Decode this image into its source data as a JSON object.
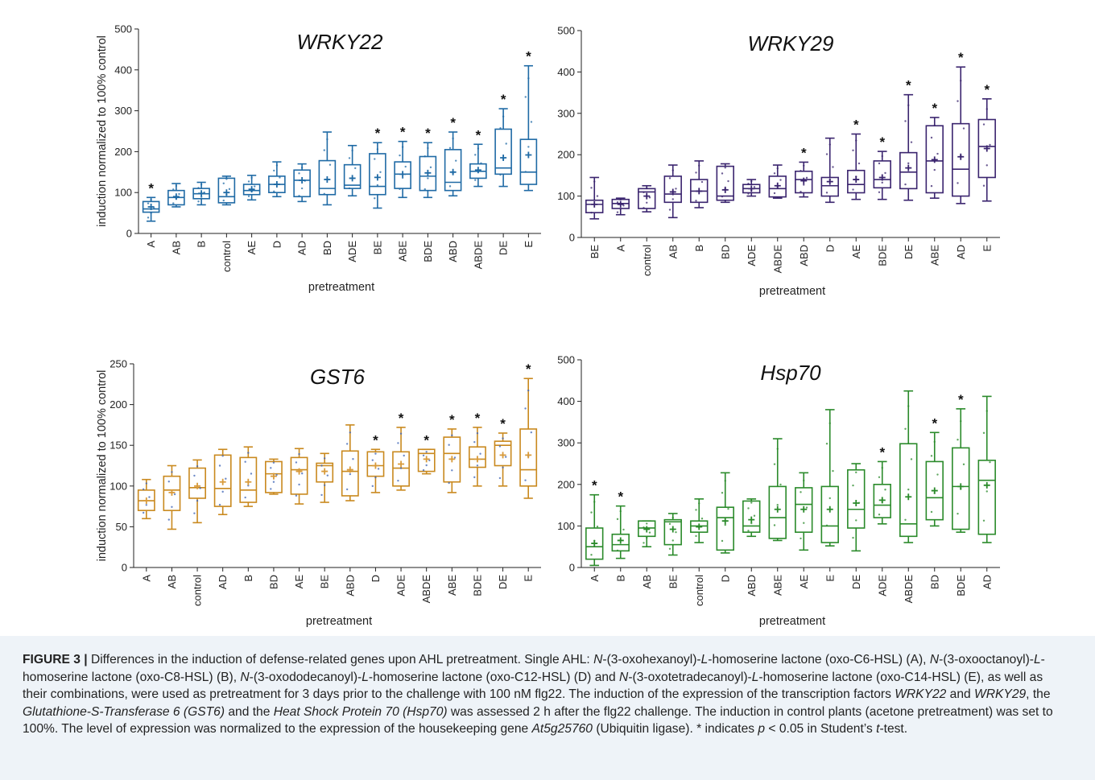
{
  "figure": {
    "y_label": "induction normalized to 100% control",
    "x_label": "pretreatment"
  },
  "chart_data": [
    {
      "type": "box",
      "title": "WRKY22",
      "color": "#1f6aa5",
      "ylim": [
        0,
        500
      ],
      "yticks": [
        0,
        100,
        200,
        300,
        400,
        500
      ],
      "ylabel": "induction normalized to 100% control",
      "xlabel": "pretreatment",
      "categories": [
        "A",
        "AB",
        "B",
        "control",
        "AE",
        "D",
        "AD",
        "BD",
        "ADE",
        "BE",
        "ABE",
        "BDE",
        "ABD",
        "ABDE",
        "DE",
        "E"
      ],
      "boxes": [
        {
          "min": 30,
          "q1": 52,
          "median": 60,
          "q3": 78,
          "max": 88,
          "mean": 65,
          "sig": true
        },
        {
          "min": 65,
          "q1": 70,
          "median": 88,
          "q3": 105,
          "max": 122,
          "mean": 90,
          "sig": false
        },
        {
          "min": 70,
          "q1": 85,
          "median": 97,
          "q3": 110,
          "max": 125,
          "mean": 98,
          "sig": false
        },
        {
          "min": 70,
          "q1": 75,
          "median": 90,
          "q3": 135,
          "max": 140,
          "mean": 100,
          "sig": false
        },
        {
          "min": 82,
          "q1": 95,
          "median": 105,
          "q3": 120,
          "max": 142,
          "mean": 108,
          "sig": false
        },
        {
          "min": 90,
          "q1": 100,
          "median": 120,
          "q3": 140,
          "max": 175,
          "mean": 120,
          "sig": false
        },
        {
          "min": 78,
          "q1": 90,
          "median": 130,
          "q3": 155,
          "max": 170,
          "mean": 130,
          "sig": false
        },
        {
          "min": 70,
          "q1": 95,
          "median": 110,
          "q3": 178,
          "max": 248,
          "mean": 132,
          "sig": false
        },
        {
          "min": 92,
          "q1": 110,
          "median": 118,
          "q3": 168,
          "max": 215,
          "mean": 135,
          "sig": false
        },
        {
          "min": 62,
          "q1": 95,
          "median": 115,
          "q3": 195,
          "max": 222,
          "mean": 137,
          "sig": true
        },
        {
          "min": 88,
          "q1": 110,
          "median": 145,
          "q3": 175,
          "max": 225,
          "mean": 145,
          "sig": true
        },
        {
          "min": 88,
          "q1": 105,
          "median": 140,
          "q3": 188,
          "max": 222,
          "mean": 148,
          "sig": true
        },
        {
          "min": 92,
          "q1": 105,
          "median": 125,
          "q3": 205,
          "max": 248,
          "mean": 150,
          "sig": true
        },
        {
          "min": 115,
          "q1": 135,
          "median": 152,
          "q3": 170,
          "max": 218,
          "mean": 155,
          "sig": true
        },
        {
          "min": 115,
          "q1": 145,
          "median": 160,
          "q3": 255,
          "max": 305,
          "mean": 185,
          "sig": true
        },
        {
          "min": 105,
          "q1": 120,
          "median": 150,
          "q3": 230,
          "max": 410,
          "mean": 192,
          "sig": true
        }
      ]
    },
    {
      "type": "box",
      "title": "WRKY29",
      "color": "#3a246e",
      "ylim": [
        0,
        500
      ],
      "yticks": [
        0,
        100,
        200,
        300,
        400,
        500
      ],
      "ylabel": "",
      "xlabel": "pretreatment",
      "categories": [
        "BE",
        "A",
        "control",
        "AB",
        "B",
        "BD",
        "ADE",
        "ABDE",
        "ABD",
        "D",
        "AE",
        "BDE",
        "DE",
        "ABE",
        "AD",
        "E"
      ],
      "boxes": [
        {
          "min": 45,
          "q1": 60,
          "median": 80,
          "q3": 90,
          "max": 145,
          "mean": 80,
          "sig": false
        },
        {
          "min": 55,
          "q1": 70,
          "median": 82,
          "q3": 92,
          "max": 95,
          "mean": 80,
          "sig": false
        },
        {
          "min": 62,
          "q1": 70,
          "median": 110,
          "q3": 118,
          "max": 125,
          "mean": 100,
          "sig": false
        },
        {
          "min": 48,
          "q1": 85,
          "median": 105,
          "q3": 148,
          "max": 175,
          "mean": 110,
          "sig": false
        },
        {
          "min": 72,
          "q1": 85,
          "median": 112,
          "q3": 140,
          "max": 185,
          "mean": 112,
          "sig": false
        },
        {
          "min": 85,
          "q1": 90,
          "median": 100,
          "q3": 172,
          "max": 178,
          "mean": 115,
          "sig": false
        },
        {
          "min": 100,
          "q1": 108,
          "median": 118,
          "q3": 128,
          "max": 140,
          "mean": 118,
          "sig": false
        },
        {
          "min": 95,
          "q1": 98,
          "median": 118,
          "q3": 148,
          "max": 175,
          "mean": 125,
          "sig": false
        },
        {
          "min": 98,
          "q1": 108,
          "median": 140,
          "q3": 160,
          "max": 182,
          "mean": 137,
          "sig": true
        },
        {
          "min": 85,
          "q1": 100,
          "median": 125,
          "q3": 145,
          "max": 240,
          "mean": 135,
          "sig": false
        },
        {
          "min": 92,
          "q1": 108,
          "median": 128,
          "q3": 162,
          "max": 250,
          "mean": 140,
          "sig": true
        },
        {
          "min": 92,
          "q1": 120,
          "median": 140,
          "q3": 185,
          "max": 208,
          "mean": 145,
          "sig": true
        },
        {
          "min": 90,
          "q1": 118,
          "median": 158,
          "q3": 205,
          "max": 345,
          "mean": 168,
          "sig": true
        },
        {
          "min": 95,
          "q1": 108,
          "median": 185,
          "q3": 270,
          "max": 290,
          "mean": 188,
          "sig": true
        },
        {
          "min": 82,
          "q1": 100,
          "median": 165,
          "q3": 275,
          "max": 412,
          "mean": 195,
          "sig": true
        },
        {
          "min": 88,
          "q1": 145,
          "median": 220,
          "q3": 285,
          "max": 335,
          "mean": 215,
          "sig": true
        }
      ]
    },
    {
      "type": "box",
      "title": "GST6",
      "color": "#c9891e",
      "mean_color": "#d89a3a",
      "point_color": "#3b62b4",
      "ylim": [
        0,
        250
      ],
      "yticks": [
        0,
        50,
        100,
        150,
        200,
        250
      ],
      "ylabel": "induction normalized to 100% control",
      "xlabel": "pretreatment",
      "categories": [
        "A",
        "AB",
        "control",
        "AD",
        "B",
        "BD",
        "AE",
        "BE",
        "ABD",
        "D",
        "ADE",
        "ABDE",
        "ABE",
        "BDE",
        "DE",
        "E"
      ],
      "boxes": [
        {
          "min": 60,
          "q1": 70,
          "median": 82,
          "q3": 95,
          "max": 108,
          "mean": 82,
          "sig": false
        },
        {
          "min": 47,
          "q1": 70,
          "median": 95,
          "q3": 112,
          "max": 125,
          "mean": 92,
          "sig": false
        },
        {
          "min": 55,
          "q1": 85,
          "median": 98,
          "q3": 122,
          "max": 132,
          "mean": 100,
          "sig": false
        },
        {
          "min": 65,
          "q1": 75,
          "median": 97,
          "q3": 138,
          "max": 145,
          "mean": 105,
          "sig": false
        },
        {
          "min": 75,
          "q1": 80,
          "median": 95,
          "q3": 135,
          "max": 148,
          "mean": 105,
          "sig": false
        },
        {
          "min": 90,
          "q1": 92,
          "median": 115,
          "q3": 130,
          "max": 133,
          "mean": 112,
          "sig": false
        },
        {
          "min": 78,
          "q1": 90,
          "median": 120,
          "q3": 135,
          "max": 146,
          "mean": 118,
          "sig": false
        },
        {
          "min": 80,
          "q1": 105,
          "median": 125,
          "q3": 128,
          "max": 140,
          "mean": 118,
          "sig": false
        },
        {
          "min": 82,
          "q1": 88,
          "median": 118,
          "q3": 143,
          "max": 175,
          "mean": 120,
          "sig": false
        },
        {
          "min": 92,
          "q1": 112,
          "median": 125,
          "q3": 142,
          "max": 145,
          "mean": 125,
          "sig": true
        },
        {
          "min": 95,
          "q1": 100,
          "median": 122,
          "q3": 142,
          "max": 172,
          "mean": 127,
          "sig": true
        },
        {
          "min": 115,
          "q1": 118,
          "median": 140,
          "q3": 145,
          "max": 145,
          "mean": 133,
          "sig": true
        },
        {
          "min": 92,
          "q1": 105,
          "median": 140,
          "q3": 160,
          "max": 170,
          "mean": 133,
          "sig": true
        },
        {
          "min": 100,
          "q1": 123,
          "median": 133,
          "q3": 148,
          "max": 172,
          "mean": 133,
          "sig": true
        },
        {
          "min": 100,
          "q1": 125,
          "median": 150,
          "q3": 155,
          "max": 165,
          "mean": 138,
          "sig": true
        },
        {
          "min": 85,
          "q1": 100,
          "median": 120,
          "q3": 170,
          "max": 232,
          "mean": 138,
          "sig": true
        }
      ]
    },
    {
      "type": "box",
      "title": "Hsp70",
      "color": "#2a8a2a",
      "ylim": [
        0,
        500
      ],
      "yticks": [
        0,
        100,
        200,
        300,
        400,
        500
      ],
      "ylabel": "",
      "xlabel": "pretreatment",
      "categories": [
        "A",
        "B",
        "AB",
        "BE",
        "control",
        "D",
        "ABD",
        "ABE",
        "AE",
        "E",
        "DE",
        "ADE",
        "ABDE",
        "BD",
        "BDE",
        "AD"
      ],
      "boxes": [
        {
          "min": 5,
          "q1": 20,
          "median": 50,
          "q3": 95,
          "max": 175,
          "mean": 58,
          "sig": true
        },
        {
          "min": 22,
          "q1": 40,
          "median": 55,
          "q3": 80,
          "max": 148,
          "mean": 65,
          "sig": true
        },
        {
          "min": 50,
          "q1": 75,
          "median": 95,
          "q3": 112,
          "max": 112,
          "mean": 92,
          "sig": false
        },
        {
          "min": 30,
          "q1": 55,
          "median": 110,
          "q3": 115,
          "max": 130,
          "mean": 92,
          "sig": false
        },
        {
          "min": 60,
          "q1": 85,
          "median": 100,
          "q3": 112,
          "max": 165,
          "mean": 98,
          "sig": false
        },
        {
          "min": 35,
          "q1": 42,
          "median": 120,
          "q3": 145,
          "max": 228,
          "mean": 112,
          "sig": false
        },
        {
          "min": 75,
          "q1": 85,
          "median": 100,
          "q3": 160,
          "max": 165,
          "mean": 115,
          "sig": false
        },
        {
          "min": 65,
          "q1": 70,
          "median": 120,
          "q3": 195,
          "max": 310,
          "mean": 140,
          "sig": false
        },
        {
          "min": 42,
          "q1": 85,
          "median": 152,
          "q3": 192,
          "max": 228,
          "mean": 140,
          "sig": false
        },
        {
          "min": 52,
          "q1": 60,
          "median": 100,
          "q3": 195,
          "max": 380,
          "mean": 140,
          "sig": false
        },
        {
          "min": 40,
          "q1": 95,
          "median": 140,
          "q3": 235,
          "max": 250,
          "mean": 155,
          "sig": false
        },
        {
          "min": 105,
          "q1": 120,
          "median": 150,
          "q3": 200,
          "max": 255,
          "mean": 162,
          "sig": true
        },
        {
          "min": 60,
          "q1": 75,
          "median": 105,
          "q3": 298,
          "max": 425,
          "mean": 170,
          "sig": false
        },
        {
          "min": 100,
          "q1": 115,
          "median": 168,
          "q3": 255,
          "max": 325,
          "mean": 185,
          "sig": true
        },
        {
          "min": 85,
          "q1": 92,
          "median": 195,
          "q3": 288,
          "max": 382,
          "mean": 195,
          "sig": true
        },
        {
          "min": 60,
          "q1": 80,
          "median": 210,
          "q3": 258,
          "max": 412,
          "mean": 198,
          "sig": false
        }
      ]
    }
  ],
  "caption": {
    "label": "FIGURE 3 |",
    "segments": [
      {
        "t": " Differences in the induction of defense-related genes upon AHL pretreatment. Single AHL: ",
        "i": false
      },
      {
        "t": "N",
        "i": true
      },
      {
        "t": "-(3-oxohexanoyl)-",
        "i": false
      },
      {
        "t": "L",
        "i": true
      },
      {
        "t": "-homoserine lactone (oxo-C6-HSL) (A), ",
        "i": false
      },
      {
        "t": "N",
        "i": true
      },
      {
        "t": "-(3-oxooctanoyl)-",
        "i": false
      },
      {
        "t": "L",
        "i": true
      },
      {
        "t": "-homoserine lactone (oxo-C8-HSL) (B), ",
        "i": false
      },
      {
        "t": "N",
        "i": true
      },
      {
        "t": "-(3-oxododecanoyl)-",
        "i": false
      },
      {
        "t": "L",
        "i": true
      },
      {
        "t": "-homoserine lactone (oxo-C12-HSL) (D) and ",
        "i": false
      },
      {
        "t": "N",
        "i": true
      },
      {
        "t": "-(3-oxotetradecanoyl)-",
        "i": false
      },
      {
        "t": "L",
        "i": true
      },
      {
        "t": "-homoserine lactone (oxo-C14-HSL) (E), as well as their combinations, were used as pretreatment for 3 days prior to the challenge with 100 nM flg22. The induction of the expression of the transcription factors ",
        "i": false
      },
      {
        "t": "WRKY22",
        "i": true
      },
      {
        "t": " and ",
        "i": false
      },
      {
        "t": "WRKY29",
        "i": true
      },
      {
        "t": ", the ",
        "i": false
      },
      {
        "t": "Glutathione-S-Transferase 6 (GST6)",
        "i": true
      },
      {
        "t": " and the ",
        "i": false
      },
      {
        "t": "Heat Shock Protein 70 (Hsp70)",
        "i": true
      },
      {
        "t": " was assessed 2 h after the flg22 challenge. The induction in control plants (acetone pretreatment) was set to 100%. The level of expression was normalized to the expression of the housekeeping gene ",
        "i": false
      },
      {
        "t": "At5g25760",
        "i": true
      },
      {
        "t": " (Ubiquitin ligase). * indicates ",
        "i": false
      },
      {
        "t": "p",
        "i": true
      },
      {
        "t": " < 0.05 in Student’s ",
        "i": false
      },
      {
        "t": "t",
        "i": true
      },
      {
        "t": "-test.",
        "i": false
      }
    ]
  }
}
